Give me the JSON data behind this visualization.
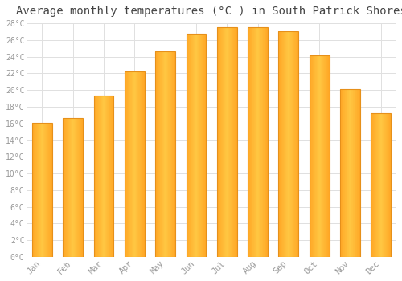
{
  "title": "Average monthly temperatures (°C ) in South Patrick Shores",
  "months": [
    "Jan",
    "Feb",
    "Mar",
    "Apr",
    "May",
    "Jun",
    "Jul",
    "Aug",
    "Sep",
    "Oct",
    "Nov",
    "Dec"
  ],
  "temperatures": [
    16.1,
    16.6,
    19.3,
    22.2,
    24.6,
    26.8,
    27.5,
    27.5,
    27.0,
    24.2,
    20.1,
    17.2
  ],
  "bar_face_color": "#FFA726",
  "bar_edge_color": "#E6901A",
  "bar_highlight_color": "#FFD54F",
  "background_color": "#FFFFFF",
  "grid_color": "#E0E0E0",
  "title_fontsize": 10,
  "tick_label_color": "#999999",
  "ylim": [
    0,
    28
  ],
  "ytick_max": 28,
  "ytick_step": 2,
  "font_family": "monospace"
}
